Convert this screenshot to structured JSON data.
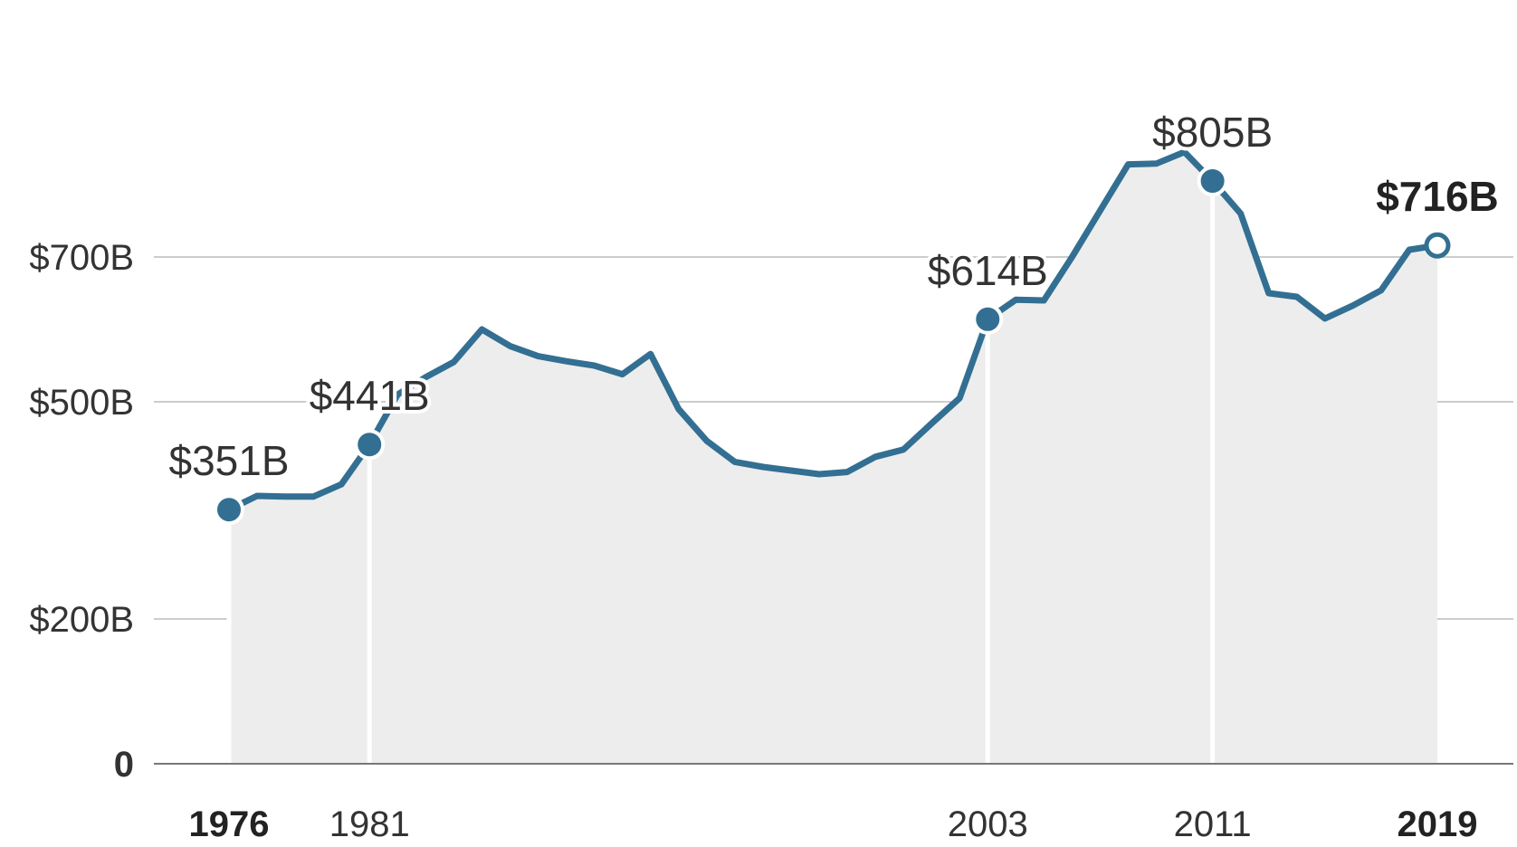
{
  "chart_data": {
    "type": "area",
    "title": "",
    "xlabel": "",
    "ylabel": "",
    "ylim": [
      0,
      900
    ],
    "xlim": [
      1976,
      2019
    ],
    "grid": true,
    "yticks": [
      {
        "value": 0,
        "label": "0",
        "bold": true
      },
      {
        "value": 200,
        "label": "$200B",
        "bold": false
      },
      {
        "value": 500,
        "label": "$500B",
        "bold": false
      },
      {
        "value": 700,
        "label": "$700B",
        "bold": false
      }
    ],
    "xticks": [
      {
        "value": 1976,
        "label": "1976",
        "bold": true
      },
      {
        "value": 1981,
        "label": "1981",
        "bold": false
      },
      {
        "value": 2003,
        "label": "2003",
        "bold": false
      },
      {
        "value": 2011,
        "label": "2011",
        "bold": false
      },
      {
        "value": 2019,
        "label": "2019",
        "bold": true
      }
    ],
    "series": [
      {
        "x": [
          1976,
          1977,
          1978,
          1979,
          1980,
          1981,
          1982,
          1983,
          1984,
          1985,
          1986,
          1987,
          1988,
          1989,
          1990,
          1991,
          1992,
          1993,
          1994,
          1995,
          1996,
          1997,
          1998,
          1999,
          2000,
          2001,
          2002,
          2003,
          2004,
          2005,
          2006,
          2007,
          2008,
          2009,
          2010,
          2011,
          2012,
          2013,
          2014,
          2015,
          2016,
          2017,
          2018,
          2019
        ],
        "values": [
          351,
          370,
          369,
          369,
          386,
          441,
          510,
          534,
          555,
          600,
          577,
          563,
          556,
          550,
          538,
          566,
          490,
          446,
          417,
          410,
          405,
          400,
          403,
          424,
          434,
          470,
          505,
          614,
          641,
          640,
          700,
          764,
          828,
          829,
          845,
          805,
          760,
          650,
          645,
          615,
          633,
          654,
          710,
          716
        ]
      }
    ],
    "annotations": [
      {
        "x": 1976,
        "y": 351,
        "label": "$351B",
        "bold": false,
        "hollow": false,
        "guide": true
      },
      {
        "x": 1981,
        "y": 441,
        "label": "$441B",
        "bold": false,
        "hollow": false,
        "guide": true
      },
      {
        "x": 2003,
        "y": 614,
        "label": "$614B",
        "bold": false,
        "hollow": false,
        "guide": true
      },
      {
        "x": 2011,
        "y": 805,
        "label": "$805B",
        "bold": false,
        "hollow": false,
        "guide": true
      },
      {
        "x": 2019,
        "y": 716,
        "label": "$716B",
        "bold": true,
        "hollow": true,
        "guide": false
      }
    ],
    "colors": {
      "line": "#336f92",
      "area": "#ededed",
      "grid": "#cccccc",
      "baseline": "#777777",
      "guide": "#ffffff"
    }
  }
}
